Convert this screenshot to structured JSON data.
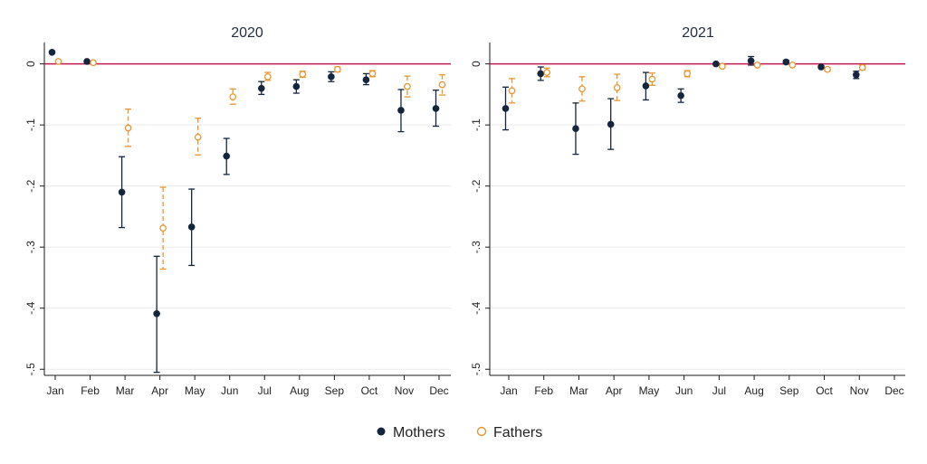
{
  "chart_data": [
    {
      "type": "scatter",
      "title": "2020",
      "xlabel": "",
      "ylabel": "",
      "categories": [
        "Jan",
        "Feb",
        "Mar",
        "Apr",
        "May",
        "Jun",
        "Jul",
        "Aug",
        "Sep",
        "Oct",
        "Nov",
        "Dec"
      ],
      "y_ticks": [
        0,
        -0.1,
        -0.2,
        -0.3,
        -0.4,
        -0.5
      ],
      "y_tick_labels": [
        "0",
        "-.1",
        "-.2",
        "-.3",
        "-.4",
        "-.5"
      ],
      "ylim": [
        -0.51,
        0.035
      ],
      "reference_line": 0,
      "series": [
        {
          "name": "Mothers",
          "color": "#14253d",
          "marker": "filled-circle",
          "points": [
            {
              "x": "Jan",
              "y": 0.019,
              "lo": 0.019,
              "hi": 0.019
            },
            {
              "x": "Feb",
              "y": 0.004,
              "lo": 0.004,
              "hi": 0.004
            },
            {
              "x": "Mar",
              "y": -0.21,
              "lo": -0.268,
              "hi": -0.152
            },
            {
              "x": "Apr",
              "y": -0.409,
              "lo": -0.505,
              "hi": -0.315
            },
            {
              "x": "May",
              "y": -0.267,
              "lo": -0.33,
              "hi": -0.205
            },
            {
              "x": "Jun",
              "y": -0.151,
              "lo": -0.181,
              "hi": -0.122
            },
            {
              "x": "Jul",
              "y": -0.04,
              "lo": -0.05,
              "hi": -0.029
            },
            {
              "x": "Aug",
              "y": -0.037,
              "lo": -0.048,
              "hi": -0.026
            },
            {
              "x": "Sep",
              "y": -0.021,
              "lo": -0.029,
              "hi": -0.013
            },
            {
              "x": "Oct",
              "y": -0.026,
              "lo": -0.034,
              "hi": -0.016
            },
            {
              "x": "Nov",
              "y": -0.076,
              "lo": -0.111,
              "hi": -0.042
            },
            {
              "x": "Dec",
              "y": -0.073,
              "lo": -0.102,
              "hi": -0.043
            }
          ]
        },
        {
          "name": "Fathers",
          "color": "#e8962e",
          "marker": "hollow-circle",
          "points": [
            {
              "x": "Jan",
              "y": 0.004,
              "lo": 0.004,
              "hi": 0.004
            },
            {
              "x": "Feb",
              "y": 0.002,
              "lo": 0.002,
              "hi": 0.002
            },
            {
              "x": "Mar",
              "y": -0.105,
              "lo": -0.135,
              "hi": -0.074
            },
            {
              "x": "Apr",
              "y": -0.269,
              "lo": -0.336,
              "hi": -0.202
            },
            {
              "x": "May",
              "y": -0.12,
              "lo": -0.149,
              "hi": -0.089
            },
            {
              "x": "Jun",
              "y": -0.054,
              "lo": -0.066,
              "hi": -0.041
            },
            {
              "x": "Jul",
              "y": -0.021,
              "lo": -0.027,
              "hi": -0.014
            },
            {
              "x": "Aug",
              "y": -0.017,
              "lo": -0.022,
              "hi": -0.012
            },
            {
              "x": "Sep",
              "y": -0.009,
              "lo": -0.013,
              "hi": -0.005
            },
            {
              "x": "Oct",
              "y": -0.016,
              "lo": -0.021,
              "hi": -0.011
            },
            {
              "x": "Nov",
              "y": -0.037,
              "lo": -0.054,
              "hi": -0.02
            },
            {
              "x": "Dec",
              "y": -0.034,
              "lo": -0.051,
              "hi": -0.018
            }
          ]
        }
      ]
    },
    {
      "type": "scatter",
      "title": "2021",
      "xlabel": "",
      "ylabel": "",
      "categories": [
        "Jan",
        "Feb",
        "Mar",
        "Apr",
        "May",
        "Jun",
        "Jul",
        "Aug",
        "Sep",
        "Oct",
        "Nov",
        "Dec"
      ],
      "y_ticks": [
        0,
        -0.1,
        -0.2,
        -0.3,
        -0.4,
        -0.5
      ],
      "y_tick_labels": [
        "0",
        "-.1",
        "-.2",
        "-.3",
        "-.4",
        "-.5"
      ],
      "ylim": [
        -0.51,
        0.035
      ],
      "reference_line": 0,
      "series": [
        {
          "name": "Mothers",
          "color": "#14253d",
          "marker": "filled-circle",
          "points": [
            {
              "x": "Jan",
              "y": -0.073,
              "lo": -0.108,
              "hi": -0.038
            },
            {
              "x": "Feb",
              "y": -0.016,
              "lo": -0.027,
              "hi": -0.005
            },
            {
              "x": "Mar",
              "y": -0.106,
              "lo": -0.148,
              "hi": -0.064
            },
            {
              "x": "Apr",
              "y": -0.099,
              "lo": -0.14,
              "hi": -0.057
            },
            {
              "x": "May",
              "y": -0.036,
              "lo": -0.059,
              "hi": -0.014
            },
            {
              "x": "Jun",
              "y": -0.052,
              "lo": -0.063,
              "hi": -0.041
            },
            {
              "x": "Jul",
              "y": 0.0,
              "lo": -0.002,
              "hi": 0.002
            },
            {
              "x": "Aug",
              "y": 0.005,
              "lo": -0.002,
              "hi": 0.012
            },
            {
              "x": "Sep",
              "y": 0.003,
              "lo": 0.0,
              "hi": 0.006
            },
            {
              "x": "Oct",
              "y": -0.005,
              "lo": -0.007,
              "hi": -0.003
            },
            {
              "x": "Nov",
              "y": -0.018,
              "lo": -0.024,
              "hi": -0.012
            }
          ]
        },
        {
          "name": "Fathers",
          "color": "#e8962e",
          "marker": "hollow-circle",
          "points": [
            {
              "x": "Jan",
              "y": -0.044,
              "lo": -0.064,
              "hi": -0.024
            },
            {
              "x": "Feb",
              "y": -0.014,
              "lo": -0.021,
              "hi": -0.007
            },
            {
              "x": "Mar",
              "y": -0.041,
              "lo": -0.061,
              "hi": -0.021
            },
            {
              "x": "Apr",
              "y": -0.039,
              "lo": -0.06,
              "hi": -0.017
            },
            {
              "x": "May",
              "y": -0.025,
              "lo": -0.035,
              "hi": -0.015
            },
            {
              "x": "Jun",
              "y": -0.016,
              "lo": -0.021,
              "hi": -0.011
            },
            {
              "x": "Jul",
              "y": -0.004,
              "lo": -0.006,
              "hi": -0.002
            },
            {
              "x": "Aug",
              "y": -0.002,
              "lo": -0.004,
              "hi": 0.0
            },
            {
              "x": "Sep",
              "y": -0.002,
              "lo": -0.004,
              "hi": 0.0
            },
            {
              "x": "Oct",
              "y": -0.009,
              "lo": -0.012,
              "hi": -0.006
            },
            {
              "x": "Nov",
              "y": -0.006,
              "lo": -0.01,
              "hi": -0.002
            }
          ]
        }
      ]
    }
  ],
  "legend": {
    "placement": "bottom-center",
    "items": [
      {
        "label": "Mothers",
        "color": "#14253d",
        "marker": "filled-circle"
      },
      {
        "label": "Fathers",
        "color": "#e8962e",
        "marker": "hollow-circle"
      }
    ]
  },
  "style": {
    "reference_line_color": "#c0184f",
    "grid_color": "#eaeaea",
    "axis_color": "#1a1a1a"
  }
}
